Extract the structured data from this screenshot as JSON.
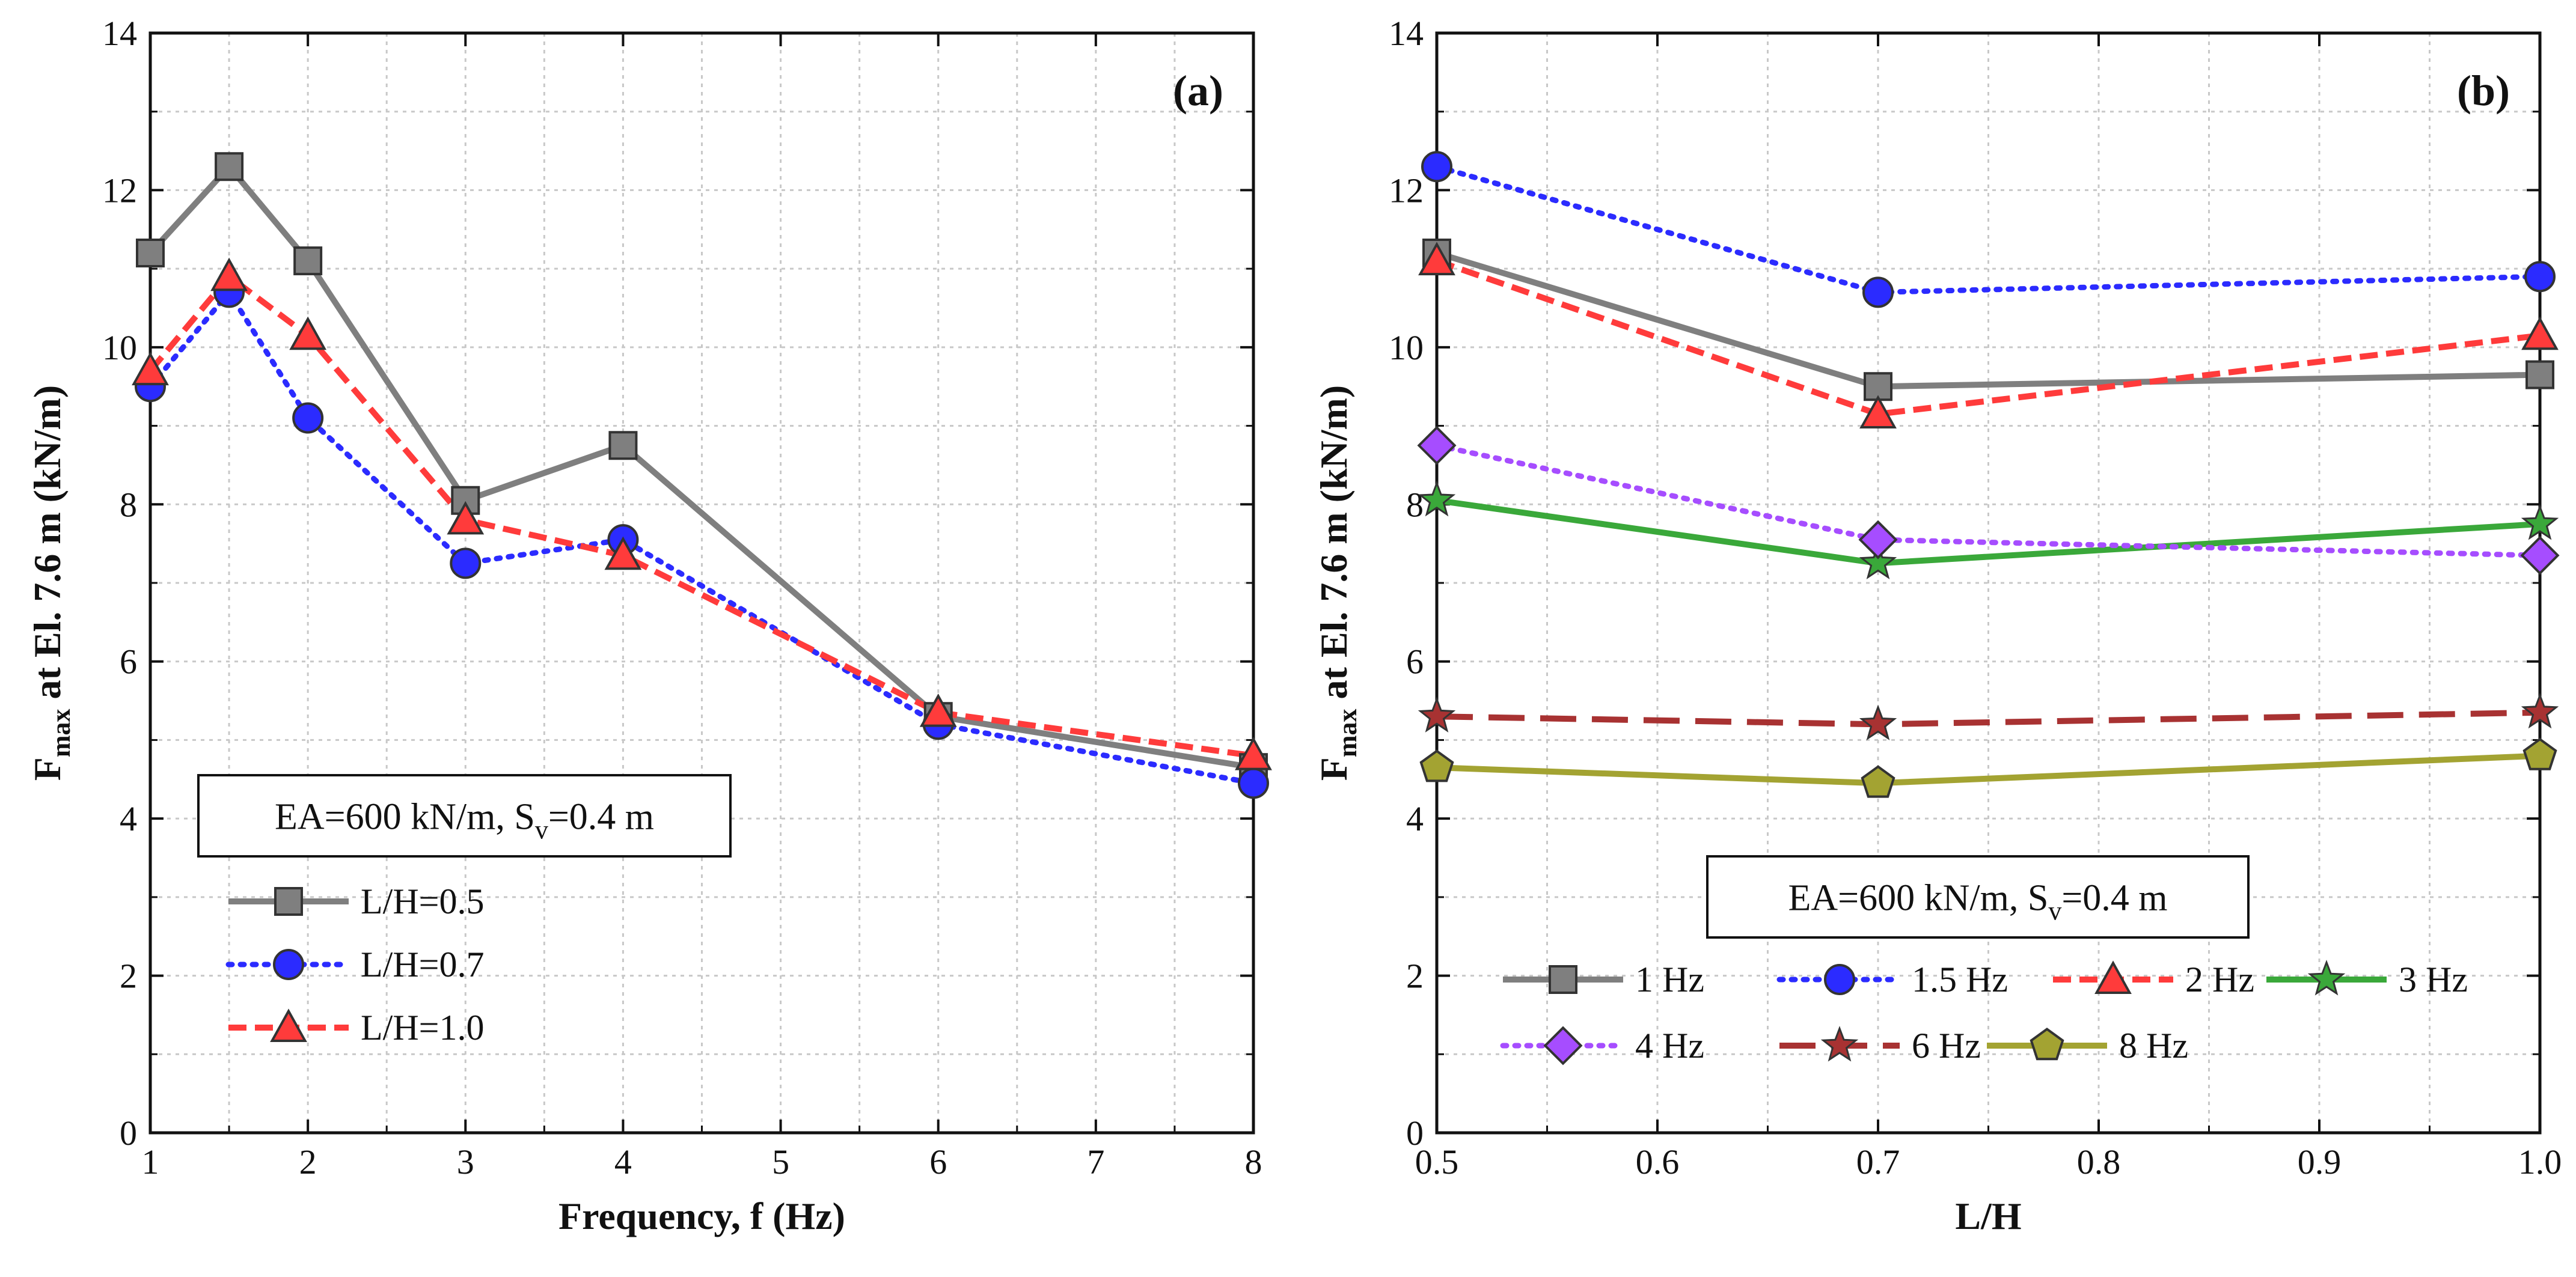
{
  "colors": {
    "gray": "#7f7f7f",
    "blue": "#2b2bff",
    "red": "#ff3b3b",
    "green": "#3aa83a",
    "purple": "#a64dff",
    "brown": "#a83232",
    "olive": "#a3a332"
  },
  "chart_data": [
    {
      "type": "line",
      "panel": "(a)",
      "xlabel": "Frequency, f (Hz)",
      "ylabel_main": "F",
      "ylabel_sub": "max",
      "ylabel_rest": " at El. 7.6 m (kN/m)",
      "xlim": [
        1,
        8
      ],
      "ylim": [
        0,
        14
      ],
      "xticks": [
        "1",
        "2",
        "3",
        "4",
        "5",
        "6",
        "7",
        "8"
      ],
      "yticks": [
        "0",
        "2",
        "4",
        "6",
        "8",
        "10",
        "12",
        "14"
      ],
      "grid": true,
      "annotation": {
        "pre": "EA=600 kN/m, S",
        "sub": "v",
        "post": "=0.4 m"
      },
      "legend_position": "bottom-left",
      "series": [
        {
          "name": "L/H=0.5",
          "x": [
            1,
            1.5,
            2,
            3,
            4,
            6,
            8
          ],
          "values": [
            11.2,
            12.3,
            11.1,
            8.05,
            8.75,
            5.3,
            4.65
          ],
          "color": "gray",
          "dash": "solid",
          "marker": "square"
        },
        {
          "name": "L/H=0.7",
          "x": [
            1,
            1.5,
            2,
            3,
            4,
            6,
            8
          ],
          "values": [
            9.5,
            10.7,
            9.1,
            7.25,
            7.55,
            5.2,
            4.45
          ],
          "color": "blue",
          "dash": "dotted",
          "marker": "circle"
        },
        {
          "name": "L/H=1.0",
          "x": [
            1,
            1.5,
            2,
            3,
            4,
            6,
            8
          ],
          "values": [
            9.7,
            10.9,
            10.15,
            7.8,
            7.35,
            5.35,
            4.8
          ],
          "color": "red",
          "dash": "dashed",
          "marker": "triangle"
        }
      ]
    },
    {
      "type": "line",
      "panel": "(b)",
      "xlabel": "L/H",
      "ylabel_main": "F",
      "ylabel_sub": "max",
      "ylabel_rest": " at El. 7.6 m (kN/m)",
      "xlim": [
        0.5,
        1.0
      ],
      "ylim": [
        0,
        14
      ],
      "xticks": [
        "0.5",
        "0.6",
        "0.7",
        "0.8",
        "0.9",
        "1.0"
      ],
      "yticks": [
        "0",
        "2",
        "4",
        "6",
        "8",
        "10",
        "12",
        "14"
      ],
      "grid": true,
      "annotation": {
        "pre": "EA=600 kN/m, S",
        "sub": "v",
        "post": "=0.4 m"
      },
      "legend_position": "bottom",
      "series": [
        {
          "name": "1 Hz",
          "x": [
            0.5,
            0.7,
            1.0
          ],
          "values": [
            11.2,
            9.5,
            9.65
          ],
          "color": "gray",
          "dash": "solid",
          "marker": "square"
        },
        {
          "name": "1.5 Hz",
          "x": [
            0.5,
            0.7,
            1.0
          ],
          "values": [
            12.3,
            10.7,
            10.9
          ],
          "color": "blue",
          "dash": "dotted",
          "marker": "circle"
        },
        {
          "name": "2 Hz",
          "x": [
            0.5,
            0.7,
            1.0
          ],
          "values": [
            11.1,
            9.15,
            10.15
          ],
          "color": "red",
          "dash": "dashed",
          "marker": "triangle"
        },
        {
          "name": "3 Hz",
          "x": [
            0.5,
            0.7,
            1.0
          ],
          "values": [
            8.05,
            7.25,
            7.75
          ],
          "color": "green",
          "dash": "solid",
          "marker": "star"
        },
        {
          "name": "4 Hz",
          "x": [
            0.5,
            0.7,
            1.0
          ],
          "values": [
            8.75,
            7.55,
            7.35
          ],
          "color": "purple",
          "dash": "dotted",
          "marker": "diamond"
        },
        {
          "name": "6 Hz",
          "x": [
            0.5,
            0.7,
            1.0
          ],
          "values": [
            5.3,
            5.2,
            5.35
          ],
          "color": "brown",
          "dash": "longdash",
          "marker": "star"
        },
        {
          "name": "8 Hz",
          "x": [
            0.5,
            0.7,
            1.0
          ],
          "values": [
            4.65,
            4.45,
            4.8
          ],
          "color": "olive",
          "dash": "solid",
          "marker": "pentagon"
        }
      ]
    }
  ]
}
